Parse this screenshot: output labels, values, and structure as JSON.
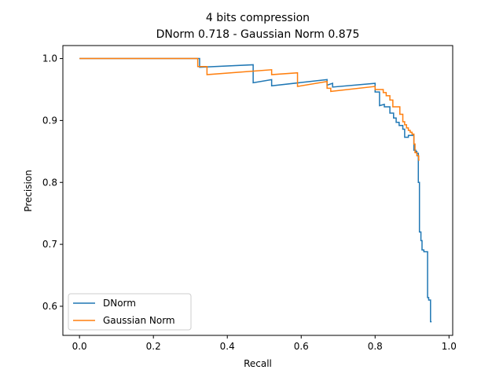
{
  "chart_data": {
    "type": "line",
    "title": "4 bits compression",
    "subtitle": "DNorm 0.718 - Gaussian Norm 0.875",
    "xlabel": "Recall",
    "ylabel": "Precision",
    "xlim": [
      -0.045,
      1.01
    ],
    "ylim": [
      0.553,
      1.021
    ],
    "xticks": [
      "0.0",
      "0.2",
      "0.4",
      "0.6",
      "0.8",
      "1.0"
    ],
    "xtick_values": [
      0.0,
      0.2,
      0.4,
      0.6,
      0.8,
      1.0
    ],
    "yticks": [
      "0.6",
      "0.7",
      "0.8",
      "0.9",
      "1.0"
    ],
    "ytick_values": [
      0.6,
      0.7,
      0.8,
      0.9,
      1.0
    ],
    "grid": false,
    "legend_position": "lower left",
    "series": [
      {
        "name": "DNorm",
        "color": "#1f77b4",
        "x": [
          0.0,
          0.325,
          0.325,
          0.47,
          0.47,
          0.52,
          0.52,
          0.67,
          0.67,
          0.685,
          0.685,
          0.8,
          0.8,
          0.812,
          0.812,
          0.825,
          0.825,
          0.84,
          0.84,
          0.85,
          0.85,
          0.857,
          0.857,
          0.865,
          0.865,
          0.875,
          0.875,
          0.88,
          0.88,
          0.89,
          0.89,
          0.905,
          0.905,
          0.91,
          0.91,
          0.913,
          0.913,
          0.917,
          0.917,
          0.92,
          0.92,
          0.924,
          0.924,
          0.927,
          0.927,
          0.932,
          0.932,
          0.942,
          0.942,
          0.945,
          0.945,
          0.95,
          0.95,
          0.953
        ],
        "y": [
          1.0,
          1.0,
          0.986,
          0.99,
          0.961,
          0.966,
          0.956,
          0.966,
          0.957,
          0.96,
          0.954,
          0.96,
          0.946,
          0.946,
          0.924,
          0.926,
          0.922,
          0.922,
          0.912,
          0.912,
          0.904,
          0.904,
          0.897,
          0.897,
          0.892,
          0.892,
          0.886,
          0.886,
          0.873,
          0.873,
          0.876,
          0.876,
          0.852,
          0.852,
          0.85,
          0.85,
          0.847,
          0.847,
          0.8,
          0.8,
          0.72,
          0.72,
          0.706,
          0.706,
          0.691,
          0.691,
          0.688,
          0.688,
          0.614,
          0.614,
          0.61,
          0.61,
          0.575,
          0.575
        ]
      },
      {
        "name": "Gaussian Norm",
        "color": "#ff7f0e",
        "x": [
          0.0,
          0.32,
          0.32,
          0.345,
          0.345,
          0.52,
          0.52,
          0.59,
          0.59,
          0.67,
          0.67,
          0.68,
          0.68,
          0.8,
          0.8,
          0.822,
          0.822,
          0.83,
          0.83,
          0.84,
          0.84,
          0.848,
          0.848,
          0.867,
          0.867,
          0.875,
          0.875,
          0.88,
          0.88,
          0.885,
          0.885,
          0.89,
          0.89,
          0.895,
          0.895,
          0.9,
          0.9,
          0.905,
          0.905,
          0.908,
          0.908,
          0.913,
          0.913,
          0.918,
          0.918,
          0.92
        ],
        "y": [
          1.0,
          1.0,
          0.987,
          0.987,
          0.974,
          0.982,
          0.974,
          0.977,
          0.955,
          0.963,
          0.952,
          0.952,
          0.947,
          0.955,
          0.95,
          0.95,
          0.945,
          0.945,
          0.94,
          0.94,
          0.933,
          0.933,
          0.922,
          0.922,
          0.91,
          0.91,
          0.898,
          0.898,
          0.893,
          0.893,
          0.888,
          0.888,
          0.884,
          0.884,
          0.881,
          0.881,
          0.878,
          0.878,
          0.862,
          0.862,
          0.848,
          0.848,
          0.843,
          0.843,
          0.836,
          0.836
        ]
      }
    ]
  }
}
